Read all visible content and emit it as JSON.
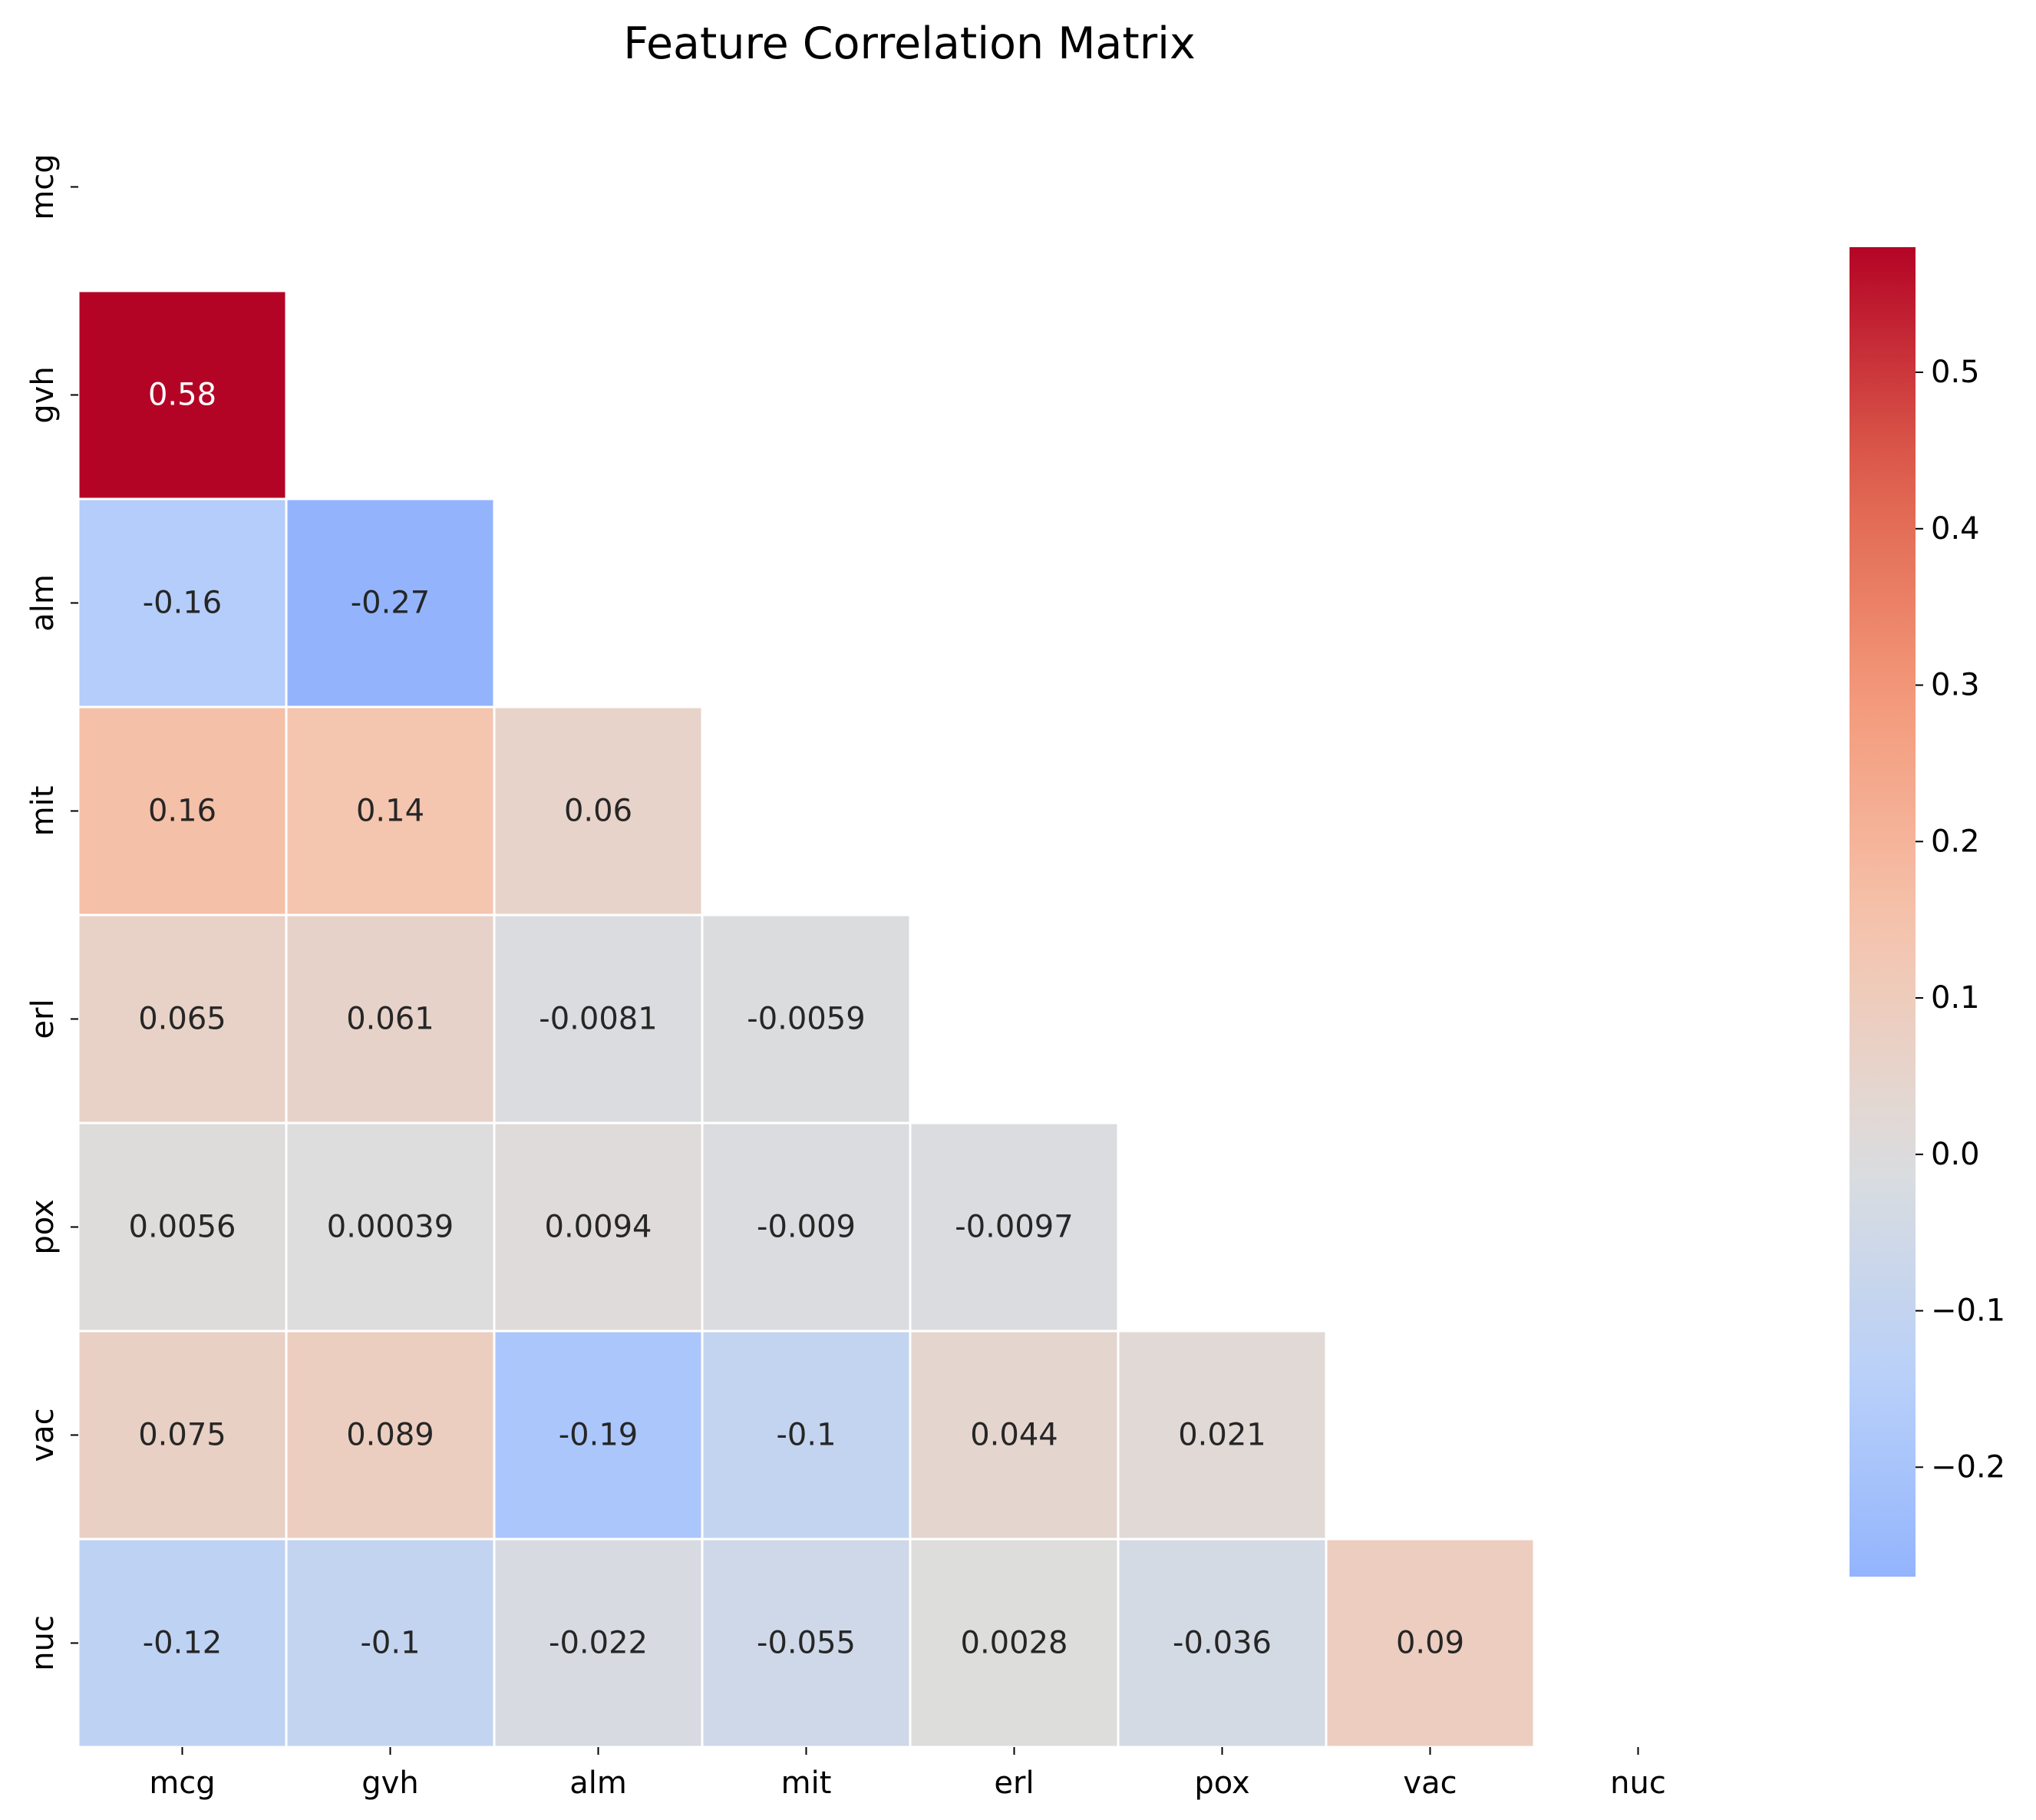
{
  "chart_data": {
    "type": "heatmap",
    "title": "Feature Correlation Matrix",
    "xlabel": "",
    "ylabel": "",
    "labels": [
      "mcg",
      "gvh",
      "alm",
      "mit",
      "erl",
      "pox",
      "vac",
      "nuc"
    ],
    "mask": "upper triangle incl. diagonal",
    "cells": [
      {
        "row": 1,
        "col": 0,
        "value": 0.58,
        "label": "0.58"
      },
      {
        "row": 2,
        "col": 0,
        "value": -0.16,
        "label": "-0.16"
      },
      {
        "row": 2,
        "col": 1,
        "value": -0.27,
        "label": "-0.27"
      },
      {
        "row": 3,
        "col": 0,
        "value": 0.16,
        "label": "0.16"
      },
      {
        "row": 3,
        "col": 1,
        "value": 0.14,
        "label": "0.14"
      },
      {
        "row": 3,
        "col": 2,
        "value": 0.06,
        "label": "0.06"
      },
      {
        "row": 4,
        "col": 0,
        "value": 0.065,
        "label": "0.065"
      },
      {
        "row": 4,
        "col": 1,
        "value": 0.061,
        "label": "0.061"
      },
      {
        "row": 4,
        "col": 2,
        "value": -0.0081,
        "label": "-0.0081"
      },
      {
        "row": 4,
        "col": 3,
        "value": -0.0059,
        "label": "-0.0059"
      },
      {
        "row": 5,
        "col": 0,
        "value": 0.0056,
        "label": "0.0056"
      },
      {
        "row": 5,
        "col": 1,
        "value": 0.00039,
        "label": "0.00039"
      },
      {
        "row": 5,
        "col": 2,
        "value": 0.0094,
        "label": "0.0094"
      },
      {
        "row": 5,
        "col": 3,
        "value": -0.009,
        "label": "-0.009"
      },
      {
        "row": 5,
        "col": 4,
        "value": -0.0097,
        "label": "-0.0097"
      },
      {
        "row": 6,
        "col": 0,
        "value": 0.075,
        "label": "0.075"
      },
      {
        "row": 6,
        "col": 1,
        "value": 0.089,
        "label": "0.089"
      },
      {
        "row": 6,
        "col": 2,
        "value": -0.19,
        "label": "-0.19"
      },
      {
        "row": 6,
        "col": 3,
        "value": -0.1,
        "label": "-0.1"
      },
      {
        "row": 6,
        "col": 4,
        "value": 0.044,
        "label": "0.044"
      },
      {
        "row": 6,
        "col": 5,
        "value": 0.021,
        "label": "0.021"
      },
      {
        "row": 7,
        "col": 0,
        "value": -0.12,
        "label": "-0.12"
      },
      {
        "row": 7,
        "col": 1,
        "value": -0.1,
        "label": "-0.1"
      },
      {
        "row": 7,
        "col": 2,
        "value": -0.022,
        "label": "-0.022"
      },
      {
        "row": 7,
        "col": 3,
        "value": -0.055,
        "label": "-0.055"
      },
      {
        "row": 7,
        "col": 4,
        "value": 0.0028,
        "label": "0.0028"
      },
      {
        "row": 7,
        "col": 5,
        "value": -0.036,
        "label": "-0.036"
      },
      {
        "row": 7,
        "col": 6,
        "value": 0.09,
        "label": "0.09"
      }
    ],
    "colormap": "coolwarm",
    "vmin": -0.27,
    "vmax": 0.58,
    "center": 0,
    "colorbar": {
      "ticks": [
        0.5,
        0.4,
        0.3,
        0.2,
        0.1,
        0.0,
        -0.1,
        -0.2
      ],
      "tick_labels": [
        "0.5",
        "0.4",
        "0.3",
        "0.2",
        "0.1",
        "0.0",
        "−0.1",
        "−0.2"
      ],
      "placement": "right"
    },
    "grid": false
  }
}
